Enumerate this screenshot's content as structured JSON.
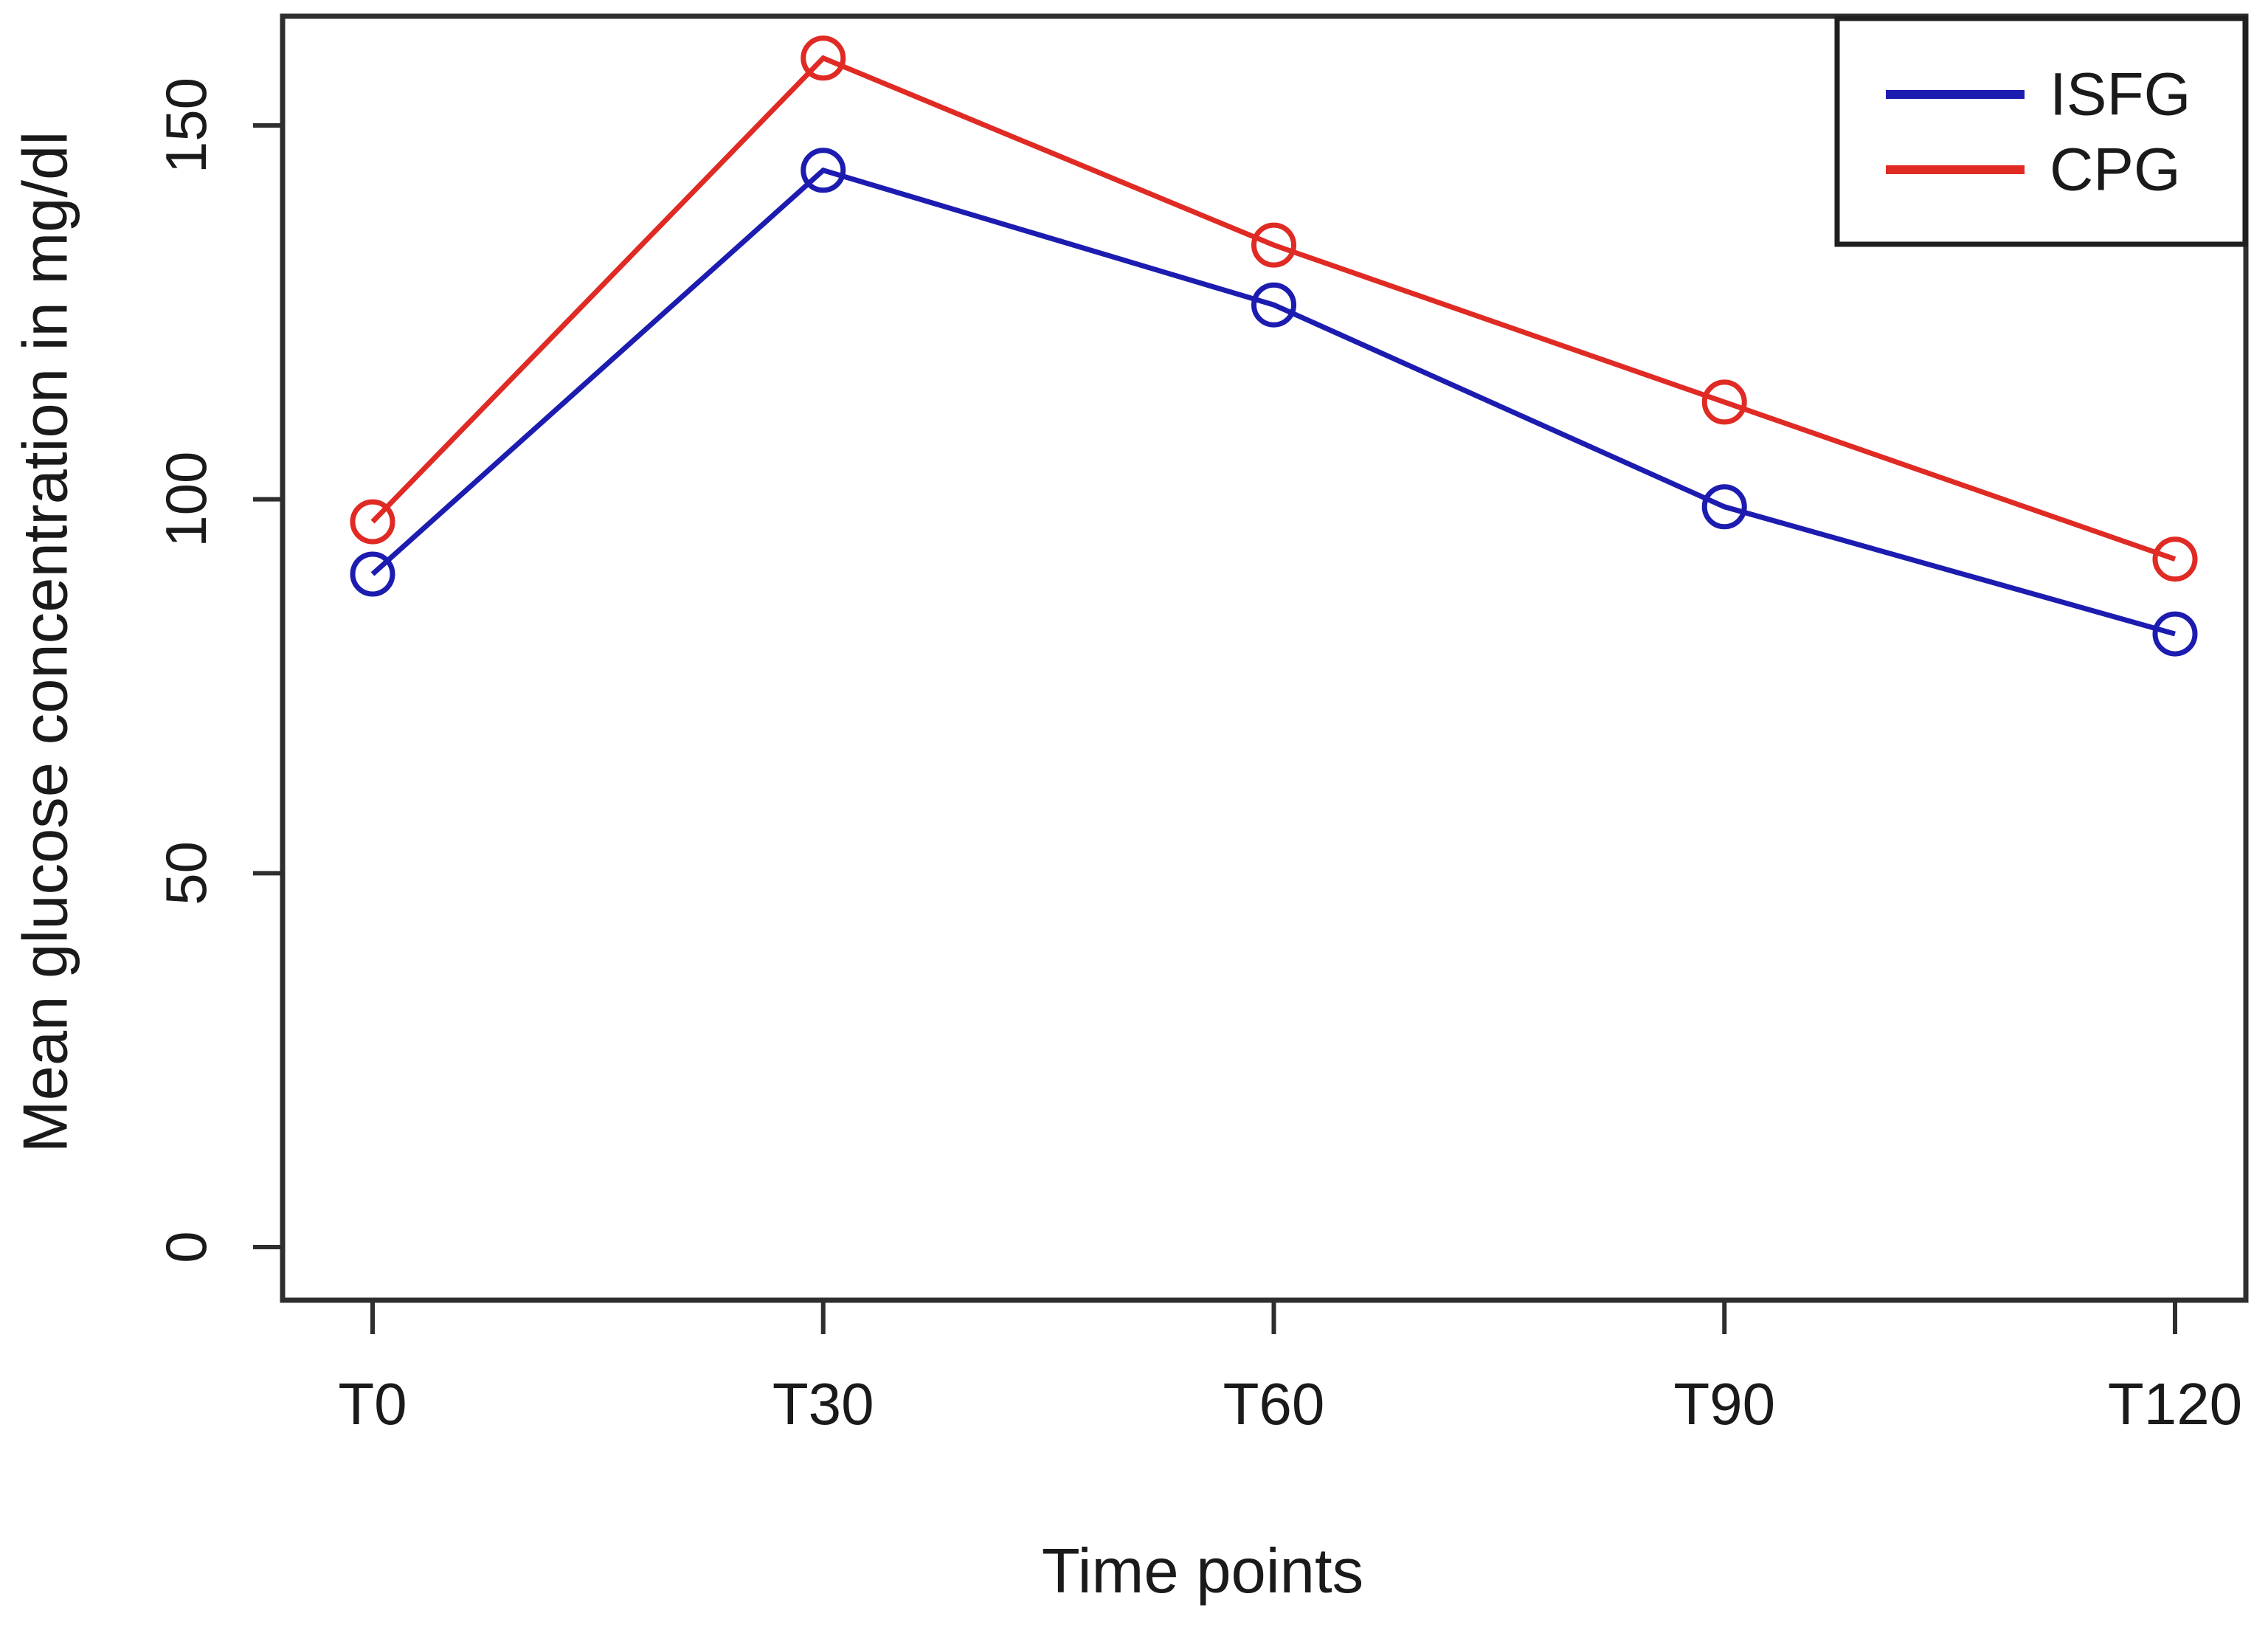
{
  "figure": {
    "background": "#ffffff",
    "axis_color": "#2e2e2e",
    "text_color": "#1a1a1a",
    "legend_border_color": "#1f1f1f"
  },
  "chart_data": {
    "type": "line",
    "title": "",
    "xlabel": "Time points",
    "ylabel": "Mean glucose concentration in mg/dl",
    "categories": [
      "T0",
      "T30",
      "T60",
      "T90",
      "T120"
    ],
    "series": [
      {
        "name": "ISFG",
        "color": "#1c1cb0",
        "values": [
          90,
          144,
          126,
          99,
          82
        ]
      },
      {
        "name": "CPG",
        "color": "#e02a24",
        "values": [
          97,
          159,
          134,
          113,
          92
        ]
      }
    ],
    "yticks": [
      "0",
      "50",
      "100",
      "150"
    ],
    "ytick_values": [
      0,
      50,
      100,
      150
    ],
    "ylim": [
      0,
      168
    ],
    "grid": false,
    "legend_position": "top-right",
    "marker": "open-circle"
  }
}
